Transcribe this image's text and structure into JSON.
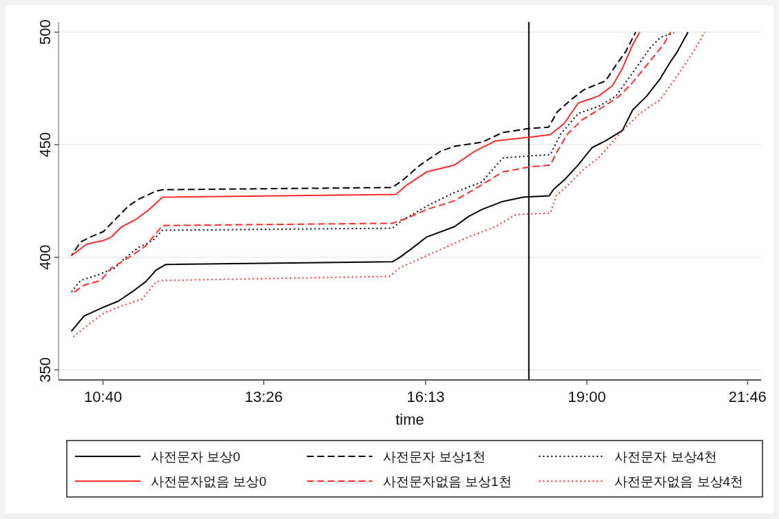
{
  "chart_data": {
    "type": "line",
    "xlabel": "time",
    "xlim": [
      9.9,
      22.0
    ],
    "ylim": [
      345.5,
      504.5
    ],
    "xticks": [
      {
        "value": 10.6667,
        "label": "10:40"
      },
      {
        "value": 13.4333,
        "label": "13:26"
      },
      {
        "value": 16.2222,
        "label": "16:13"
      },
      {
        "value": 19.0,
        "label": "19:00"
      },
      {
        "value": 21.7667,
        "label": "21:46"
      }
    ],
    "yticks": [
      350,
      400,
      450,
      500
    ],
    "grid": "y",
    "legend": "bottom",
    "ref_lines": [
      {
        "axis": "x",
        "value": 18.0,
        "color": "#000000"
      }
    ],
    "series": [
      {
        "name": "사전문자 보상0",
        "color": "#000000",
        "line_style": "solid",
        "x": [
          10.12,
          10.34,
          10.67,
          10.93,
          11.16,
          11.4,
          11.58,
          11.75,
          15.65,
          15.77,
          16.01,
          16.24,
          16.72,
          16.96,
          17.19,
          17.55,
          17.9,
          18.35,
          18.43,
          18.61,
          18.85,
          19.09,
          19.32,
          19.61,
          19.79,
          20.03,
          20.26,
          20.44,
          20.56,
          20.74
        ],
        "values": [
          367.1,
          373.9,
          377.8,
          380.5,
          384.5,
          389.1,
          394.3,
          396.8,
          398.0,
          399.8,
          404.4,
          409.0,
          413.6,
          418.1,
          421.2,
          424.8,
          426.7,
          427.3,
          430.3,
          434.3,
          441.0,
          448.7,
          451.7,
          456.3,
          465.5,
          471.6,
          479.2,
          486.9,
          491.4,
          500
        ]
      },
      {
        "name": "사전문자 보상1천",
        "color": "#000000",
        "line_style": "dashed",
        "x": [
          10.12,
          10.28,
          10.45,
          10.67,
          10.87,
          11.1,
          11.28,
          11.58,
          11.69,
          15.65,
          15.83,
          16.13,
          16.48,
          16.72,
          17.19,
          17.55,
          18.0,
          18.34,
          18.49,
          18.73,
          18.96,
          19.32,
          19.5,
          19.67,
          19.84
        ],
        "values": [
          400.7,
          406.8,
          409.0,
          411.4,
          416.6,
          422.7,
          425.8,
          429.4,
          430.0,
          431.0,
          434.3,
          441.0,
          447.1,
          449.3,
          451.1,
          455.4,
          457.2,
          457.8,
          464.6,
          470.1,
          474.6,
          478.3,
          485.3,
          491.4,
          500
        ]
      },
      {
        "name": "사전문자 보상4천",
        "color": "#000000",
        "line_style": "dotted",
        "x": [
          10.12,
          10.28,
          10.57,
          10.87,
          11.05,
          11.28,
          11.52,
          11.69,
          15.65,
          15.83,
          16.24,
          16.72,
          17.19,
          17.55,
          18.0,
          18.37,
          18.55,
          18.85,
          19.2,
          19.5,
          19.67,
          20.09,
          20.26,
          20.5
        ],
        "values": [
          384.5,
          389.7,
          392.1,
          395.2,
          399.8,
          404.4,
          407.4,
          412.0,
          412.9,
          416.6,
          422.7,
          428.8,
          433.4,
          444.1,
          445.0,
          445.6,
          454.8,
          463.9,
          467.0,
          471.6,
          477.7,
          493.0,
          497.6,
          499.7
        ]
      },
      {
        "name": "사전문자없음 보상0",
        "color": "#ff2a2a",
        "line_style": "solid",
        "x": [
          10.12,
          10.39,
          10.67,
          10.81,
          10.99,
          11.22,
          11.46,
          11.69,
          15.71,
          15.89,
          16.24,
          16.72,
          17.07,
          17.43,
          18.0,
          18.37,
          18.61,
          18.85,
          19.2,
          19.44,
          19.61,
          19.79,
          19.91
        ],
        "values": [
          400.7,
          405.9,
          407.4,
          409.0,
          413.6,
          416.6,
          421.2,
          426.7,
          427.9,
          431.9,
          437.9,
          441.0,
          447.1,
          451.7,
          453.3,
          454.5,
          459.4,
          468.5,
          471.6,
          476.2,
          483.8,
          494.5,
          500
        ]
      },
      {
        "name": "사전문자없음 보상1천",
        "color": "#ff2a2a",
        "line_style": "dashed",
        "x": [
          10.12,
          10.34,
          10.63,
          10.81,
          11.16,
          11.4,
          11.69,
          15.65,
          15.89,
          16.24,
          16.72,
          17.07,
          17.55,
          18.0,
          18.37,
          18.49,
          18.67,
          18.91,
          19.2,
          19.56,
          19.79,
          20.03,
          20.32,
          20.44
        ],
        "values": [
          383.6,
          387.6,
          389.7,
          395.2,
          400.7,
          405.0,
          414.1,
          415.1,
          417.2,
          421.2,
          425.1,
          430.3,
          437.9,
          440.1,
          441.0,
          447.1,
          454.8,
          460.9,
          465.5,
          471.6,
          477.7,
          485.3,
          494.5,
          500
        ]
      },
      {
        "name": "사전문자없음 보상4천",
        "color": "#ff2a2a",
        "line_style": "dotted",
        "x": [
          10.12,
          10.45,
          10.69,
          10.99,
          11.34,
          11.58,
          11.69,
          15.6,
          15.77,
          16.24,
          16.96,
          17.43,
          17.78,
          18.37,
          18.47,
          18.67,
          18.96,
          19.2,
          19.56,
          19.91,
          20.26,
          20.56,
          20.8,
          21.03
        ],
        "values": [
          364.0,
          370.8,
          375.4,
          378.4,
          381.5,
          389.1,
          389.7,
          391.5,
          395.2,
          400.7,
          409.0,
          413.6,
          419.0,
          419.6,
          427.3,
          431.9,
          439.5,
          444.1,
          454.8,
          463.9,
          469.9,
          480.8,
          489.9,
          500
        ]
      }
    ]
  }
}
